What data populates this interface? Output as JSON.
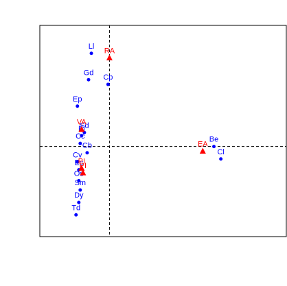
{
  "chart_data": {
    "type": "scatter",
    "title": "",
    "xlabel": "",
    "ylabel": "",
    "xlim": [
      -0.5,
      1.27
    ],
    "ylim": [
      -0.58,
      0.78
    ],
    "grid": false,
    "legend": "none",
    "reference_lines": {
      "x": 0,
      "y": 0
    },
    "colors": {
      "points": "#0000ff",
      "centroids": "#ff0000",
      "frame": "#000000"
    },
    "series": [
      {
        "marker": "dot",
        "color": "#0000ff",
        "points": [
          {
            "label": "Ll",
            "x": -0.13,
            "y": 0.6
          },
          {
            "label": "Gd",
            "x": -0.15,
            "y": 0.43
          },
          {
            "label": "Cp",
            "x": -0.01,
            "y": 0.4
          },
          {
            "label": "Ep",
            "x": -0.23,
            "y": 0.26
          },
          {
            "label": "Sd",
            "x": -0.18,
            "y": 0.09
          },
          {
            "label": "El",
            "x": -0.2,
            "y": 0.07
          },
          {
            "label": "Cc",
            "x": -0.21,
            "y": 0.02
          },
          {
            "label": "Cb",
            "x": -0.16,
            "y": -0.04
          },
          {
            "label": "Cv",
            "x": -0.23,
            "y": -0.1
          },
          {
            "label": "Ec",
            "x": -0.22,
            "y": -0.15
          },
          {
            "label": "Os",
            "x": -0.22,
            "y": -0.22
          },
          {
            "label": "Sm",
            "x": -0.21,
            "y": -0.28
          },
          {
            "label": "Dy",
            "x": -0.22,
            "y": -0.36
          },
          {
            "label": "Td",
            "x": -0.24,
            "y": -0.44
          },
          {
            "label": "Be",
            "x": 0.75,
            "y": 0.0
          },
          {
            "label": "Cl",
            "x": 0.8,
            "y": -0.08
          }
        ]
      },
      {
        "marker": "triangle",
        "color": "#ff0000",
        "points": [
          {
            "label": "RA",
            "x": 0.0,
            "y": 0.57
          },
          {
            "label": "VA",
            "x": -0.2,
            "y": 0.11
          },
          {
            "label": "PI",
            "x": -0.2,
            "y": -0.14
          },
          {
            "label": "PI",
            "x": -0.19,
            "y": -0.17
          },
          {
            "label": "EA",
            "x": 0.67,
            "y": -0.03
          }
        ]
      }
    ]
  }
}
